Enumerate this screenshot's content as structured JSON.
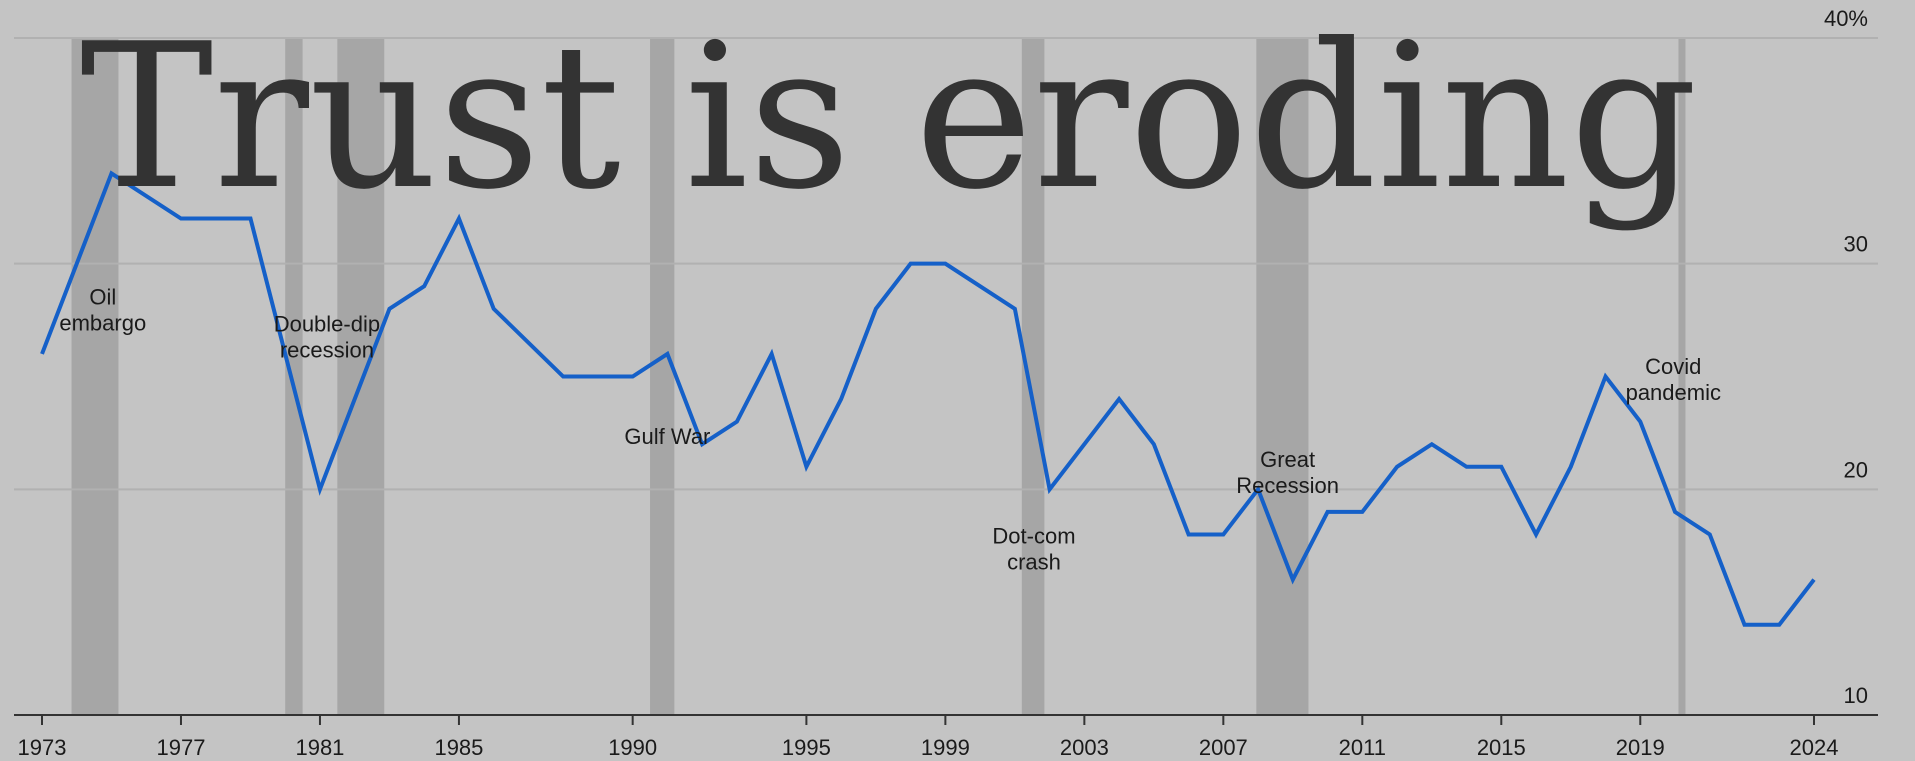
{
  "chart_data": {
    "type": "line",
    "title": "Trust is eroding",
    "xlabel": "",
    "ylabel": "",
    "xlim": [
      1973,
      2024
    ],
    "ylim": [
      10,
      40
    ],
    "y_ticks": [
      "10",
      "20",
      "30",
      "40%"
    ],
    "x_ticks": [
      "1973",
      "1977",
      "1981",
      "1985",
      "1990",
      "1995",
      "1999",
      "2003",
      "2007",
      "2011",
      "2015",
      "2019",
      "2024"
    ],
    "grid": "horizontal",
    "colors": {
      "line": "#1560c8",
      "recession_band": "#a6a6a6",
      "background": "#c4c4c4"
    },
    "recessions": [
      [
        1973.85,
        1975.2
      ],
      [
        1980.0,
        1980.5
      ],
      [
        1981.5,
        1982.85
      ],
      [
        1990.5,
        1991.2
      ],
      [
        2001.2,
        2001.85
      ],
      [
        2007.95,
        2009.45
      ],
      [
        2020.1,
        2020.3
      ]
    ],
    "series": [
      {
        "x": [
          1973,
          1975,
          1977,
          1979,
          1981,
          1983,
          1984,
          1985,
          1986,
          1988,
          1990,
          1991,
          1992,
          1993,
          1994,
          1995,
          1996,
          1997,
          1998,
          1999,
          2001,
          2002,
          2004,
          2005,
          2006,
          2007,
          2008,
          2009,
          2010,
          2011,
          2012,
          2013,
          2014,
          2015,
          2016,
          2017,
          2018,
          2019,
          2020,
          2021,
          2022,
          2023,
          2024
        ],
        "values": [
          26,
          34,
          32,
          32,
          20,
          28,
          29,
          32,
          28,
          25,
          25,
          26,
          22,
          23,
          26,
          21,
          24,
          28,
          30,
          30,
          28,
          20,
          24,
          22,
          18,
          18,
          20,
          16,
          19,
          19,
          21,
          22,
          21,
          21,
          18,
          21,
          25,
          23,
          19,
          18,
          14,
          14,
          16
        ]
      }
    ],
    "annotations": [
      {
        "lines": [
          "Oil",
          "embargo"
        ],
        "x": 1974.75,
        "y": 28.2
      },
      {
        "lines": [
          "Double-dip",
          "recession"
        ],
        "x": 1981.2,
        "y": 27.0
      },
      {
        "lines": [
          "Gulf War"
        ],
        "x": 1991.0,
        "y": 22.0
      },
      {
        "lines": [
          "Dot-com",
          "crash"
        ],
        "x": 2001.55,
        "y": 17.6
      },
      {
        "lines": [
          "Great",
          "Recession"
        ],
        "x": 2008.85,
        "y": 21.0
      },
      {
        "lines": [
          "Covid",
          "pandemic"
        ],
        "x": 2019.95,
        "y": 25.1
      }
    ]
  }
}
